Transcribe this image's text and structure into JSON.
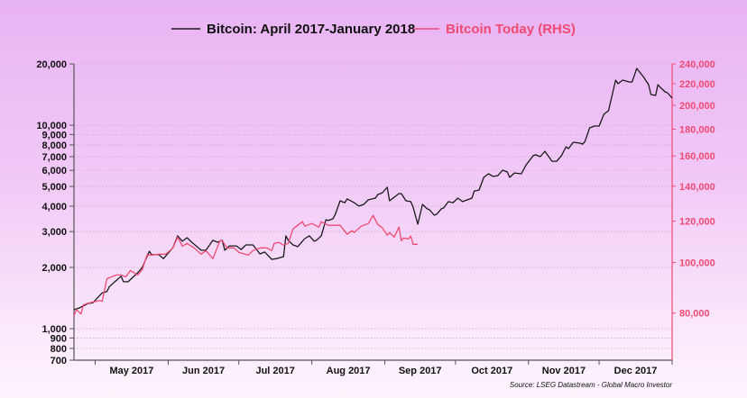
{
  "chart_data": {
    "type": "line",
    "title": "",
    "legend": {
      "placement": "top",
      "entries": [
        "Bitcoin: April 2017-January 2018",
        "Bitcoin Today (RHS)"
      ]
    },
    "source": "Source: LSEG Datastream - Global Macro Investor",
    "x_axis": {
      "type": "date",
      "range": [
        "2017-04-22",
        "2018-01-01"
      ],
      "tick_labels": [
        "May 2017",
        "Jun 2017",
        "Jul 2017",
        "Aug 2017",
        "Sep 2017",
        "Oct 2017",
        "Nov 2017",
        "Dec 2017"
      ]
    },
    "y_left": {
      "scale": "log",
      "range": [
        700,
        20000
      ],
      "tick_values": [
        700,
        800,
        900,
        1000,
        2000,
        3000,
        4000,
        5000,
        6000,
        7000,
        8000,
        9000,
        10000,
        20000
      ],
      "tick_labels": [
        "700",
        "800",
        "900",
        "1,000",
        "2,000",
        "3,000",
        "4,000",
        "5,000",
        "6,000",
        "7,000",
        "8,000",
        "9,000",
        "10,000",
        "20,000"
      ],
      "grid": true
    },
    "y_right": {
      "scale": "log",
      "range": [
        65000,
        240000
      ],
      "tick_values": [
        80000,
        100000,
        120000,
        140000,
        160000,
        180000,
        200000,
        220000,
        240000
      ],
      "tick_labels": [
        "80,000",
        "100,000",
        "120,000",
        "140,000",
        "160,000",
        "180,000",
        "200,000",
        "220,000",
        "240,000"
      ]
    },
    "colors": {
      "series1": "#1a1a1a",
      "series2": "#ef4a72",
      "right_axis": "#ef4a72"
    },
    "series": [
      {
        "name": "Bitcoin: April 2017-January 2018",
        "axis": "left",
        "points": [
          [
            "2017-04-22",
            1240
          ],
          [
            "2017-04-24",
            1260
          ],
          [
            "2017-04-28",
            1330
          ],
          [
            "2017-04-30",
            1340
          ],
          [
            "2017-05-04",
            1500
          ],
          [
            "2017-05-06",
            1520
          ],
          [
            "2017-05-07",
            1610
          ],
          [
            "2017-05-12",
            1810
          ],
          [
            "2017-05-13",
            1700
          ],
          [
            "2017-05-15",
            1700
          ],
          [
            "2017-05-19",
            1880
          ],
          [
            "2017-05-21",
            2000
          ],
          [
            "2017-05-24",
            2400
          ],
          [
            "2017-05-25",
            2310
          ],
          [
            "2017-05-28",
            2310
          ],
          [
            "2017-05-30",
            2210
          ],
          [
            "2017-06-03",
            2500
          ],
          [
            "2017-06-05",
            2860
          ],
          [
            "2017-06-07",
            2690
          ],
          [
            "2017-06-09",
            2800
          ],
          [
            "2017-06-11",
            2660
          ],
          [
            "2017-06-15",
            2430
          ],
          [
            "2017-06-17",
            2430
          ],
          [
            "2017-06-20",
            2720
          ],
          [
            "2017-06-22",
            2660
          ],
          [
            "2017-06-24",
            2720
          ],
          [
            "2017-06-25",
            2430
          ],
          [
            "2017-06-27",
            2550
          ],
          [
            "2017-06-30",
            2550
          ],
          [
            "2017-07-02",
            2450
          ],
          [
            "2017-07-04",
            2580
          ],
          [
            "2017-07-07",
            2580
          ],
          [
            "2017-07-10",
            2330
          ],
          [
            "2017-07-12",
            2380
          ],
          [
            "2017-07-15",
            2190
          ],
          [
            "2017-07-17",
            2210
          ],
          [
            "2017-07-20",
            2260
          ],
          [
            "2017-07-21",
            2860
          ],
          [
            "2017-07-22",
            2720
          ],
          [
            "2017-07-24",
            2580
          ],
          [
            "2017-07-26",
            2530
          ],
          [
            "2017-07-29",
            2770
          ],
          [
            "2017-07-31",
            2860
          ],
          [
            "2017-08-02",
            2690
          ],
          [
            "2017-08-03",
            2720
          ],
          [
            "2017-08-05",
            2860
          ],
          [
            "2017-08-07",
            3430
          ],
          [
            "2017-08-08",
            3400
          ],
          [
            "2017-08-10",
            3470
          ],
          [
            "2017-08-11",
            3650
          ],
          [
            "2017-08-13",
            4250
          ],
          [
            "2017-08-15",
            4160
          ],
          [
            "2017-08-16",
            4340
          ],
          [
            "2017-08-19",
            4160
          ],
          [
            "2017-08-21",
            4000
          ],
          [
            "2017-08-23",
            4080
          ],
          [
            "2017-08-25",
            4300
          ],
          [
            "2017-08-28",
            4380
          ],
          [
            "2017-08-29",
            4560
          ],
          [
            "2017-08-31",
            4660
          ],
          [
            "2017-09-02",
            4950
          ],
          [
            "2017-09-03",
            4250
          ],
          [
            "2017-09-07",
            4610
          ],
          [
            "2017-09-08",
            4610
          ],
          [
            "2017-09-10",
            4250
          ],
          [
            "2017-09-12",
            4210
          ],
          [
            "2017-09-13",
            3960
          ],
          [
            "2017-09-15",
            3260
          ],
          [
            "2017-09-17",
            4080
          ],
          [
            "2017-09-19",
            3880
          ],
          [
            "2017-09-20",
            3840
          ],
          [
            "2017-09-22",
            3610
          ],
          [
            "2017-09-23",
            3650
          ],
          [
            "2017-09-25",
            3880
          ],
          [
            "2017-09-26",
            3920
          ],
          [
            "2017-09-28",
            4210
          ],
          [
            "2017-09-30",
            4160
          ],
          [
            "2017-10-02",
            4380
          ],
          [
            "2017-10-04",
            4210
          ],
          [
            "2017-10-08",
            4380
          ],
          [
            "2017-10-09",
            4750
          ],
          [
            "2017-10-11",
            4800
          ],
          [
            "2017-10-13",
            5540
          ],
          [
            "2017-10-15",
            5770
          ],
          [
            "2017-10-17",
            5600
          ],
          [
            "2017-10-19",
            5650
          ],
          [
            "2017-10-21",
            6010
          ],
          [
            "2017-10-23",
            5890
          ],
          [
            "2017-10-24",
            5540
          ],
          [
            "2017-10-26",
            5820
          ],
          [
            "2017-10-29",
            5770
          ],
          [
            "2017-10-31",
            6380
          ],
          [
            "2017-11-03",
            7080
          ],
          [
            "2017-11-04",
            7150
          ],
          [
            "2017-11-06",
            7000
          ],
          [
            "2017-11-08",
            7440
          ],
          [
            "2017-11-11",
            6650
          ],
          [
            "2017-11-13",
            6650
          ],
          [
            "2017-11-15",
            7080
          ],
          [
            "2017-11-17",
            7830
          ],
          [
            "2017-11-18",
            7670
          ],
          [
            "2017-11-20",
            8240
          ],
          [
            "2017-11-23",
            8160
          ],
          [
            "2017-11-24",
            8070
          ],
          [
            "2017-11-25",
            8320
          ],
          [
            "2017-11-27",
            9700
          ],
          [
            "2017-11-29",
            9900
          ],
          [
            "2017-12-01",
            9900
          ],
          [
            "2017-12-03",
            11300
          ],
          [
            "2017-12-05",
            11780
          ],
          [
            "2017-12-08",
            16650
          ],
          [
            "2017-12-09",
            15990
          ],
          [
            "2017-12-11",
            16650
          ],
          [
            "2017-12-14",
            16300
          ],
          [
            "2017-12-15",
            16300
          ],
          [
            "2017-12-17",
            19000
          ],
          [
            "2017-12-20",
            17170
          ],
          [
            "2017-12-22",
            15820
          ],
          [
            "2017-12-23",
            14140
          ],
          [
            "2017-12-25",
            14000
          ],
          [
            "2017-12-26",
            15820
          ],
          [
            "2017-12-27",
            15350
          ],
          [
            "2017-12-29",
            14580
          ],
          [
            "2017-12-30",
            14430
          ],
          [
            "2018-01-01",
            13580
          ]
        ]
      },
      {
        "name": "Bitcoin Today (RHS)",
        "axis": "right",
        "points": [
          [
            "2017-04-22",
            79000
          ],
          [
            "2017-04-23",
            81240
          ],
          [
            "2017-04-25",
            79690
          ],
          [
            "2017-04-26",
            82900
          ],
          [
            "2017-04-28",
            83620
          ],
          [
            "2017-05-03",
            84560
          ],
          [
            "2017-05-04",
            84230
          ],
          [
            "2017-05-06",
            93110
          ],
          [
            "2017-05-10",
            94620
          ],
          [
            "2017-05-12",
            94620
          ],
          [
            "2017-05-14",
            93860
          ],
          [
            "2017-05-16",
            96520
          ],
          [
            "2017-05-19",
            94620
          ],
          [
            "2017-05-21",
            96900
          ],
          [
            "2017-05-23",
            103310
          ],
          [
            "2017-05-25",
            103310
          ],
          [
            "2017-05-28",
            103730
          ],
          [
            "2017-05-31",
            103730
          ],
          [
            "2017-06-03",
            106660
          ],
          [
            "2017-06-05",
            111860
          ],
          [
            "2017-06-07",
            107500
          ],
          [
            "2017-06-09",
            108800
          ],
          [
            "2017-06-12",
            106660
          ],
          [
            "2017-06-15",
            103730
          ],
          [
            "2017-06-17",
            105390
          ],
          [
            "2017-06-20",
            101680
          ],
          [
            "2017-06-23",
            110100
          ],
          [
            "2017-06-24",
            110100
          ],
          [
            "2017-06-26",
            106660
          ],
          [
            "2017-06-29",
            106660
          ],
          [
            "2017-07-01",
            104560
          ],
          [
            "2017-07-05",
            103310
          ],
          [
            "2017-07-07",
            105390
          ],
          [
            "2017-07-08",
            105810
          ],
          [
            "2017-07-10",
            106660
          ],
          [
            "2017-07-13",
            106660
          ],
          [
            "2017-07-15",
            105390
          ],
          [
            "2017-07-16",
            108800
          ],
          [
            "2017-07-18",
            109240
          ],
          [
            "2017-07-20",
            107940
          ],
          [
            "2017-07-22",
            108800
          ],
          [
            "2017-07-24",
            115950
          ],
          [
            "2017-07-28",
            119690
          ],
          [
            "2017-07-29",
            117340
          ],
          [
            "2017-08-01",
            118760
          ],
          [
            "2017-08-04",
            116880
          ],
          [
            "2017-08-05",
            119690
          ],
          [
            "2017-08-08",
            117800
          ],
          [
            "2017-08-13",
            117800
          ],
          [
            "2017-08-16",
            113220
          ],
          [
            "2017-08-18",
            115040
          ],
          [
            "2017-08-19",
            114130
          ],
          [
            "2017-08-22",
            117340
          ],
          [
            "2017-08-25",
            118760
          ],
          [
            "2017-08-27",
            123090
          ],
          [
            "2017-08-29",
            118280
          ],
          [
            "2017-08-31",
            116420
          ],
          [
            "2017-09-02",
            112770
          ],
          [
            "2017-09-03",
            114130
          ],
          [
            "2017-09-05",
            111860
          ],
          [
            "2017-09-07",
            116880
          ],
          [
            "2017-09-08",
            110100
          ],
          [
            "2017-09-09",
            111420
          ],
          [
            "2017-09-11",
            110980
          ],
          [
            "2017-09-12",
            112330
          ],
          [
            "2017-09-13",
            108370
          ],
          [
            "2017-09-15",
            108370
          ]
        ]
      }
    ]
  }
}
